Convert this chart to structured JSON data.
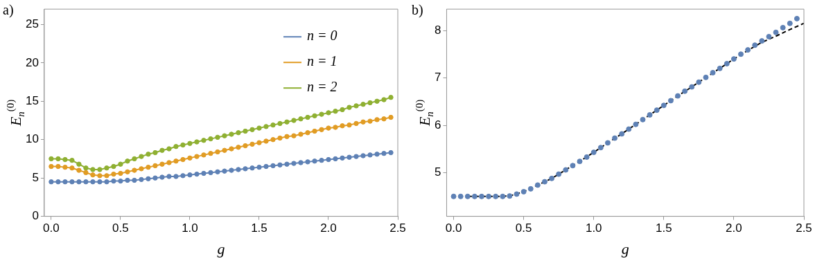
{
  "chart_data": [
    {
      "type": "line",
      "title": "a)",
      "xlabel": "g",
      "ylabel": "E$_{n}$$^{(0)}$",
      "marker": "circle",
      "legend": "top right",
      "grid": false,
      "x": [
        0,
        0.05,
        0.1,
        0.15,
        0.2,
        0.25,
        0.3,
        0.35,
        0.4,
        0.45,
        0.5,
        0.55,
        0.6,
        0.65,
        0.7,
        0.75,
        0.8,
        0.85,
        0.9,
        0.95,
        1.0,
        1.05,
        1.1,
        1.15,
        1.2,
        1.25,
        1.3,
        1.35,
        1.4,
        1.45,
        1.5,
        1.55,
        1.6,
        1.65,
        1.7,
        1.75,
        1.8,
        1.85,
        1.9,
        1.95,
        2.0,
        2.05,
        2.1,
        2.15,
        2.2,
        2.25,
        2.3,
        2.35,
        2.4,
        2.45
      ],
      "xlim": [
        -0.05,
        2.5
      ],
      "xticks": [
        {
          "value": 0,
          "label": "0.0"
        },
        0.5,
        {
          "value": 1,
          "label": "1.0"
        },
        1.5,
        {
          "value": 2,
          "label": "2.0"
        },
        2.5
      ],
      "ylim": [
        0,
        27
      ],
      "yticks": [
        0,
        5,
        10,
        15,
        20,
        25
      ],
      "series": [
        {
          "name": "n = 0",
          "color": "#5e81b5",
          "values": [
            4.5,
            4.5,
            4.5,
            4.5,
            4.5,
            4.5,
            4.5,
            4.5,
            4.5,
            4.6,
            4.6,
            4.7,
            4.7,
            4.8,
            4.9,
            5.0,
            5.1,
            5.2,
            5.2,
            5.3,
            5.4,
            5.5,
            5.6,
            5.7,
            5.8,
            5.9,
            6.0,
            6.1,
            6.2,
            6.3,
            6.4,
            6.5,
            6.6,
            6.7,
            6.8,
            6.9,
            7.0,
            7.1,
            7.2,
            7.3,
            7.4,
            7.5,
            7.6,
            7.7,
            7.8,
            7.9,
            8.0,
            8.1,
            8.2,
            8.3
          ]
        },
        {
          "name": "n = 1",
          "color": "#e19c24",
          "values": [
            6.5,
            6.5,
            6.4,
            6.3,
            6.0,
            5.7,
            5.4,
            5.3,
            5.3,
            5.5,
            5.6,
            5.8,
            6.0,
            6.2,
            6.4,
            6.6,
            6.8,
            7.0,
            7.2,
            7.4,
            7.6,
            7.8,
            8.0,
            8.2,
            8.4,
            8.6,
            8.8,
            9.0,
            9.2,
            9.4,
            9.6,
            9.8,
            10.0,
            10.2,
            10.4,
            10.5,
            10.7,
            10.9,
            11.1,
            11.3,
            11.5,
            11.6,
            11.8,
            11.9,
            12.1,
            12.3,
            12.4,
            12.6,
            12.7,
            12.9
          ]
        },
        {
          "name": "n = 2",
          "color": "#8fb032",
          "values": [
            7.5,
            7.5,
            7.4,
            7.3,
            6.8,
            6.3,
            6.1,
            6.1,
            6.3,
            6.5,
            6.8,
            7.2,
            7.5,
            7.8,
            8.1,
            8.3,
            8.6,
            8.8,
            9.1,
            9.3,
            9.5,
            9.7,
            9.9,
            10.1,
            10.3,
            10.5,
            10.7,
            10.9,
            11.1,
            11.3,
            11.5,
            11.7,
            11.9,
            12.1,
            12.3,
            12.5,
            12.7,
            12.9,
            13.1,
            13.3,
            13.5,
            13.7,
            13.9,
            14.2,
            14.4,
            14.6,
            14.8,
            15.0,
            15.2,
            15.5
          ]
        }
      ]
    },
    {
      "type": "scatter",
      "title": "b)",
      "xlabel": "g",
      "ylabel": "E$_{n}$$^{(0)}$",
      "marker": "circle",
      "grid": false,
      "x": [
        0,
        0.05,
        0.1,
        0.15,
        0.2,
        0.25,
        0.3,
        0.35,
        0.4,
        0.45,
        0.5,
        0.55,
        0.6,
        0.65,
        0.7,
        0.75,
        0.8,
        0.85,
        0.9,
        0.95,
        1.0,
        1.05,
        1.1,
        1.15,
        1.2,
        1.25,
        1.3,
        1.35,
        1.4,
        1.45,
        1.5,
        1.55,
        1.6,
        1.65,
        1.7,
        1.75,
        1.8,
        1.85,
        1.9,
        1.95,
        2.0,
        2.05,
        2.1,
        2.15,
        2.2,
        2.25,
        2.3,
        2.35,
        2.4,
        2.45
      ],
      "xlim": [
        -0.05,
        2.5
      ],
      "xticks": [
        {
          "value": 0,
          "label": "0.0"
        },
        0.5,
        {
          "value": 1,
          "label": "1.0"
        },
        1.5,
        {
          "value": 2,
          "label": "2.0"
        },
        2.5
      ],
      "ylim": [
        4.08,
        8.45
      ],
      "yticks": [
        5,
        6,
        7,
        8
      ],
      "series": [
        {
          "color": "#5e81b5",
          "values": [
            4.5,
            4.5,
            4.5,
            4.5,
            4.5,
            4.5,
            4.5,
            4.5,
            4.51,
            4.55,
            4.6,
            4.66,
            4.74,
            4.81,
            4.88,
            4.97,
            5.06,
            5.15,
            5.24,
            5.33,
            5.43,
            5.53,
            5.63,
            5.73,
            5.82,
            5.92,
            6.02,
            6.12,
            6.22,
            6.32,
            6.42,
            6.52,
            6.62,
            6.72,
            6.81,
            6.91,
            7.01,
            7.11,
            7.2,
            7.3,
            7.4,
            7.5,
            7.59,
            7.69,
            7.78,
            7.87,
            7.96,
            8.06,
            8.15,
            8.25
          ]
        },
        {
          "type": "line",
          "color": "#000000",
          "line_style": "dashed",
          "marker": "none",
          "x": [
            0.1,
            0.2,
            0.3,
            0.4,
            0.5,
            0.6,
            0.7,
            0.8,
            0.9,
            1.0,
            1.1,
            1.2,
            1.3,
            1.4,
            1.5,
            1.6,
            1.7,
            1.8,
            1.9,
            2.0,
            2.1,
            2.2,
            2.3,
            2.4,
            2.5
          ],
          "values": [
            4.5,
            4.5,
            4.5,
            4.51,
            4.6,
            4.74,
            4.88,
            5.06,
            5.24,
            5.43,
            5.63,
            5.82,
            6.02,
            6.22,
            6.42,
            6.62,
            6.81,
            7.01,
            7.2,
            7.4,
            7.58,
            7.75,
            7.88,
            8.02,
            8.15
          ]
        }
      ]
    }
  ]
}
